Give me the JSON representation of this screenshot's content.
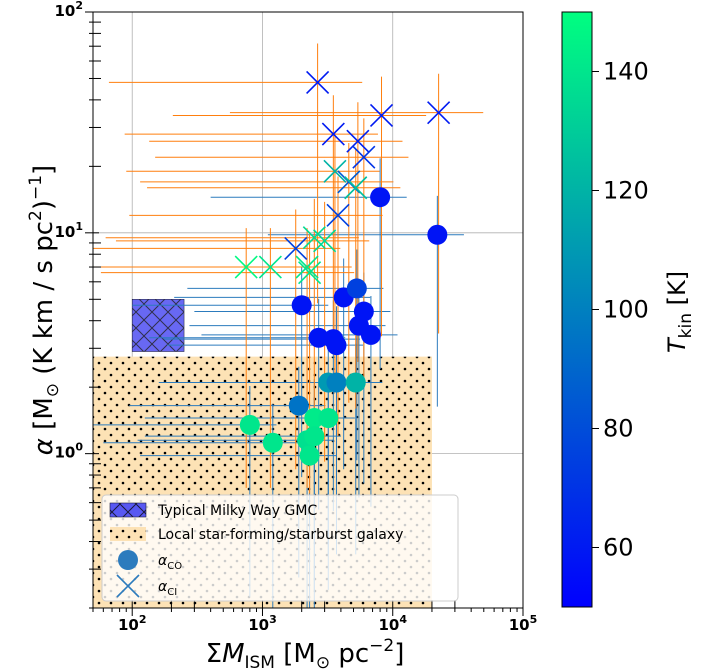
{
  "chart_data": {
    "type": "scatter",
    "xscale": "log",
    "yscale": "log",
    "xlim": [
      50,
      100000
    ],
    "ylim": [
      0.2,
      100
    ],
    "xlabel": "ΣM_ISM [M_⊙ pc^-2]",
    "ylabel": "α [M_⊙ (K km / s pc^2)^-1]",
    "colorbar_label": "T_kin [K]",
    "colorbar_range": [
      50,
      150
    ],
    "colorbar_ticks": [
      "60",
      "80",
      "100",
      "120",
      "140"
    ],
    "x_tick_labels": [
      {
        "value": 100,
        "exponent_label": "2"
      },
      {
        "value": 1000,
        "exponent_label": "3"
      },
      {
        "value": 10000,
        "exponent_label": "4"
      },
      {
        "value": 100000,
        "exponent_label": "5"
      }
    ],
    "y_tick_labels": [
      {
        "value": 1,
        "exponent_label": "0"
      },
      {
        "value": 10,
        "exponent_label": "1"
      },
      {
        "value": 100,
        "exponent_label": "2"
      }
    ],
    "grid": true,
    "legend_position": "bottom-left",
    "legend": [
      {
        "label": "Typical Milky Way GMC",
        "kind": "patch-hatch-x"
      },
      {
        "label": "Local star-forming/starburst galaxy",
        "kind": "patch-dots"
      },
      {
        "label": "α_CO",
        "kind": "circle"
      },
      {
        "label": "α_CI",
        "kind": "cross"
      }
    ],
    "regions": [
      {
        "name": "Typical Milky Way GMC",
        "x": [
          100,
          250
        ],
        "y": [
          2.9,
          5.0
        ],
        "color": "#5858f2"
      },
      {
        "name": "Local star-forming/starburst galaxy",
        "x": [
          50,
          20000
        ],
        "y": [
          0.2,
          2.75
        ],
        "color": "#fde2b5"
      }
    ],
    "series": [
      {
        "name": "α_CO",
        "marker": "circle",
        "points": [
          {
            "x": 800,
            "y": 1.35,
            "t": 140
          },
          {
            "x": 1200,
            "y": 1.12,
            "t": 140
          },
          {
            "x": 1900,
            "y": 1.65,
            "t": 95
          },
          {
            "x": 2200,
            "y": 1.15,
            "t": 138
          },
          {
            "x": 2300,
            "y": 0.98,
            "t": 140
          },
          {
            "x": 2500,
            "y": 1.45,
            "t": 142
          },
          {
            "x": 2500,
            "y": 1.2,
            "t": 140
          },
          {
            "x": 3200,
            "y": 1.45,
            "t": 140
          },
          {
            "x": 3200,
            "y": 2.1,
            "t": 110
          },
          {
            "x": 3700,
            "y": 2.1,
            "t": 100
          },
          {
            "x": 5200,
            "y": 2.1,
            "t": 120
          },
          {
            "x": 2000,
            "y": 4.7,
            "t": 58
          },
          {
            "x": 2700,
            "y": 3.35,
            "t": 58
          },
          {
            "x": 3500,
            "y": 3.3,
            "t": 58
          },
          {
            "x": 3700,
            "y": 3.1,
            "t": 58
          },
          {
            "x": 4200,
            "y": 5.1,
            "t": 58
          },
          {
            "x": 5300,
            "y": 5.6,
            "t": 75
          },
          {
            "x": 5500,
            "y": 3.8,
            "t": 58
          },
          {
            "x": 6000,
            "y": 4.4,
            "t": 58
          },
          {
            "x": 6800,
            "y": 3.45,
            "t": 58
          },
          {
            "x": 8000,
            "y": 14.5,
            "t": 58
          },
          {
            "x": 22000,
            "y": 9.8,
            "t": 58
          }
        ]
      },
      {
        "name": "α_CI",
        "marker": "cross",
        "points": [
          {
            "x": 750,
            "y": 7.0,
            "t": 148
          },
          {
            "x": 1150,
            "y": 7.0,
            "t": 140
          },
          {
            "x": 1800,
            "y": 8.5,
            "t": 75
          },
          {
            "x": 2200,
            "y": 7.0,
            "t": 140
          },
          {
            "x": 2300,
            "y": 6.6,
            "t": 140
          },
          {
            "x": 2500,
            "y": 9.5,
            "t": 135
          },
          {
            "x": 3000,
            "y": 9.2,
            "t": 135
          },
          {
            "x": 2650,
            "y": 48,
            "t": 60
          },
          {
            "x": 3500,
            "y": 28,
            "t": 60
          },
          {
            "x": 3600,
            "y": 19,
            "t": 120
          },
          {
            "x": 3800,
            "y": 12,
            "t": 75
          },
          {
            "x": 4600,
            "y": 17,
            "t": 85
          },
          {
            "x": 5200,
            "y": 16,
            "t": 125
          },
          {
            "x": 5400,
            "y": 26,
            "t": 62
          },
          {
            "x": 6000,
            "y": 22,
            "t": 70
          },
          {
            "x": 8200,
            "y": 34,
            "t": 60
          },
          {
            "x": 22500,
            "y": 35,
            "t": 60
          }
        ]
      }
    ]
  }
}
